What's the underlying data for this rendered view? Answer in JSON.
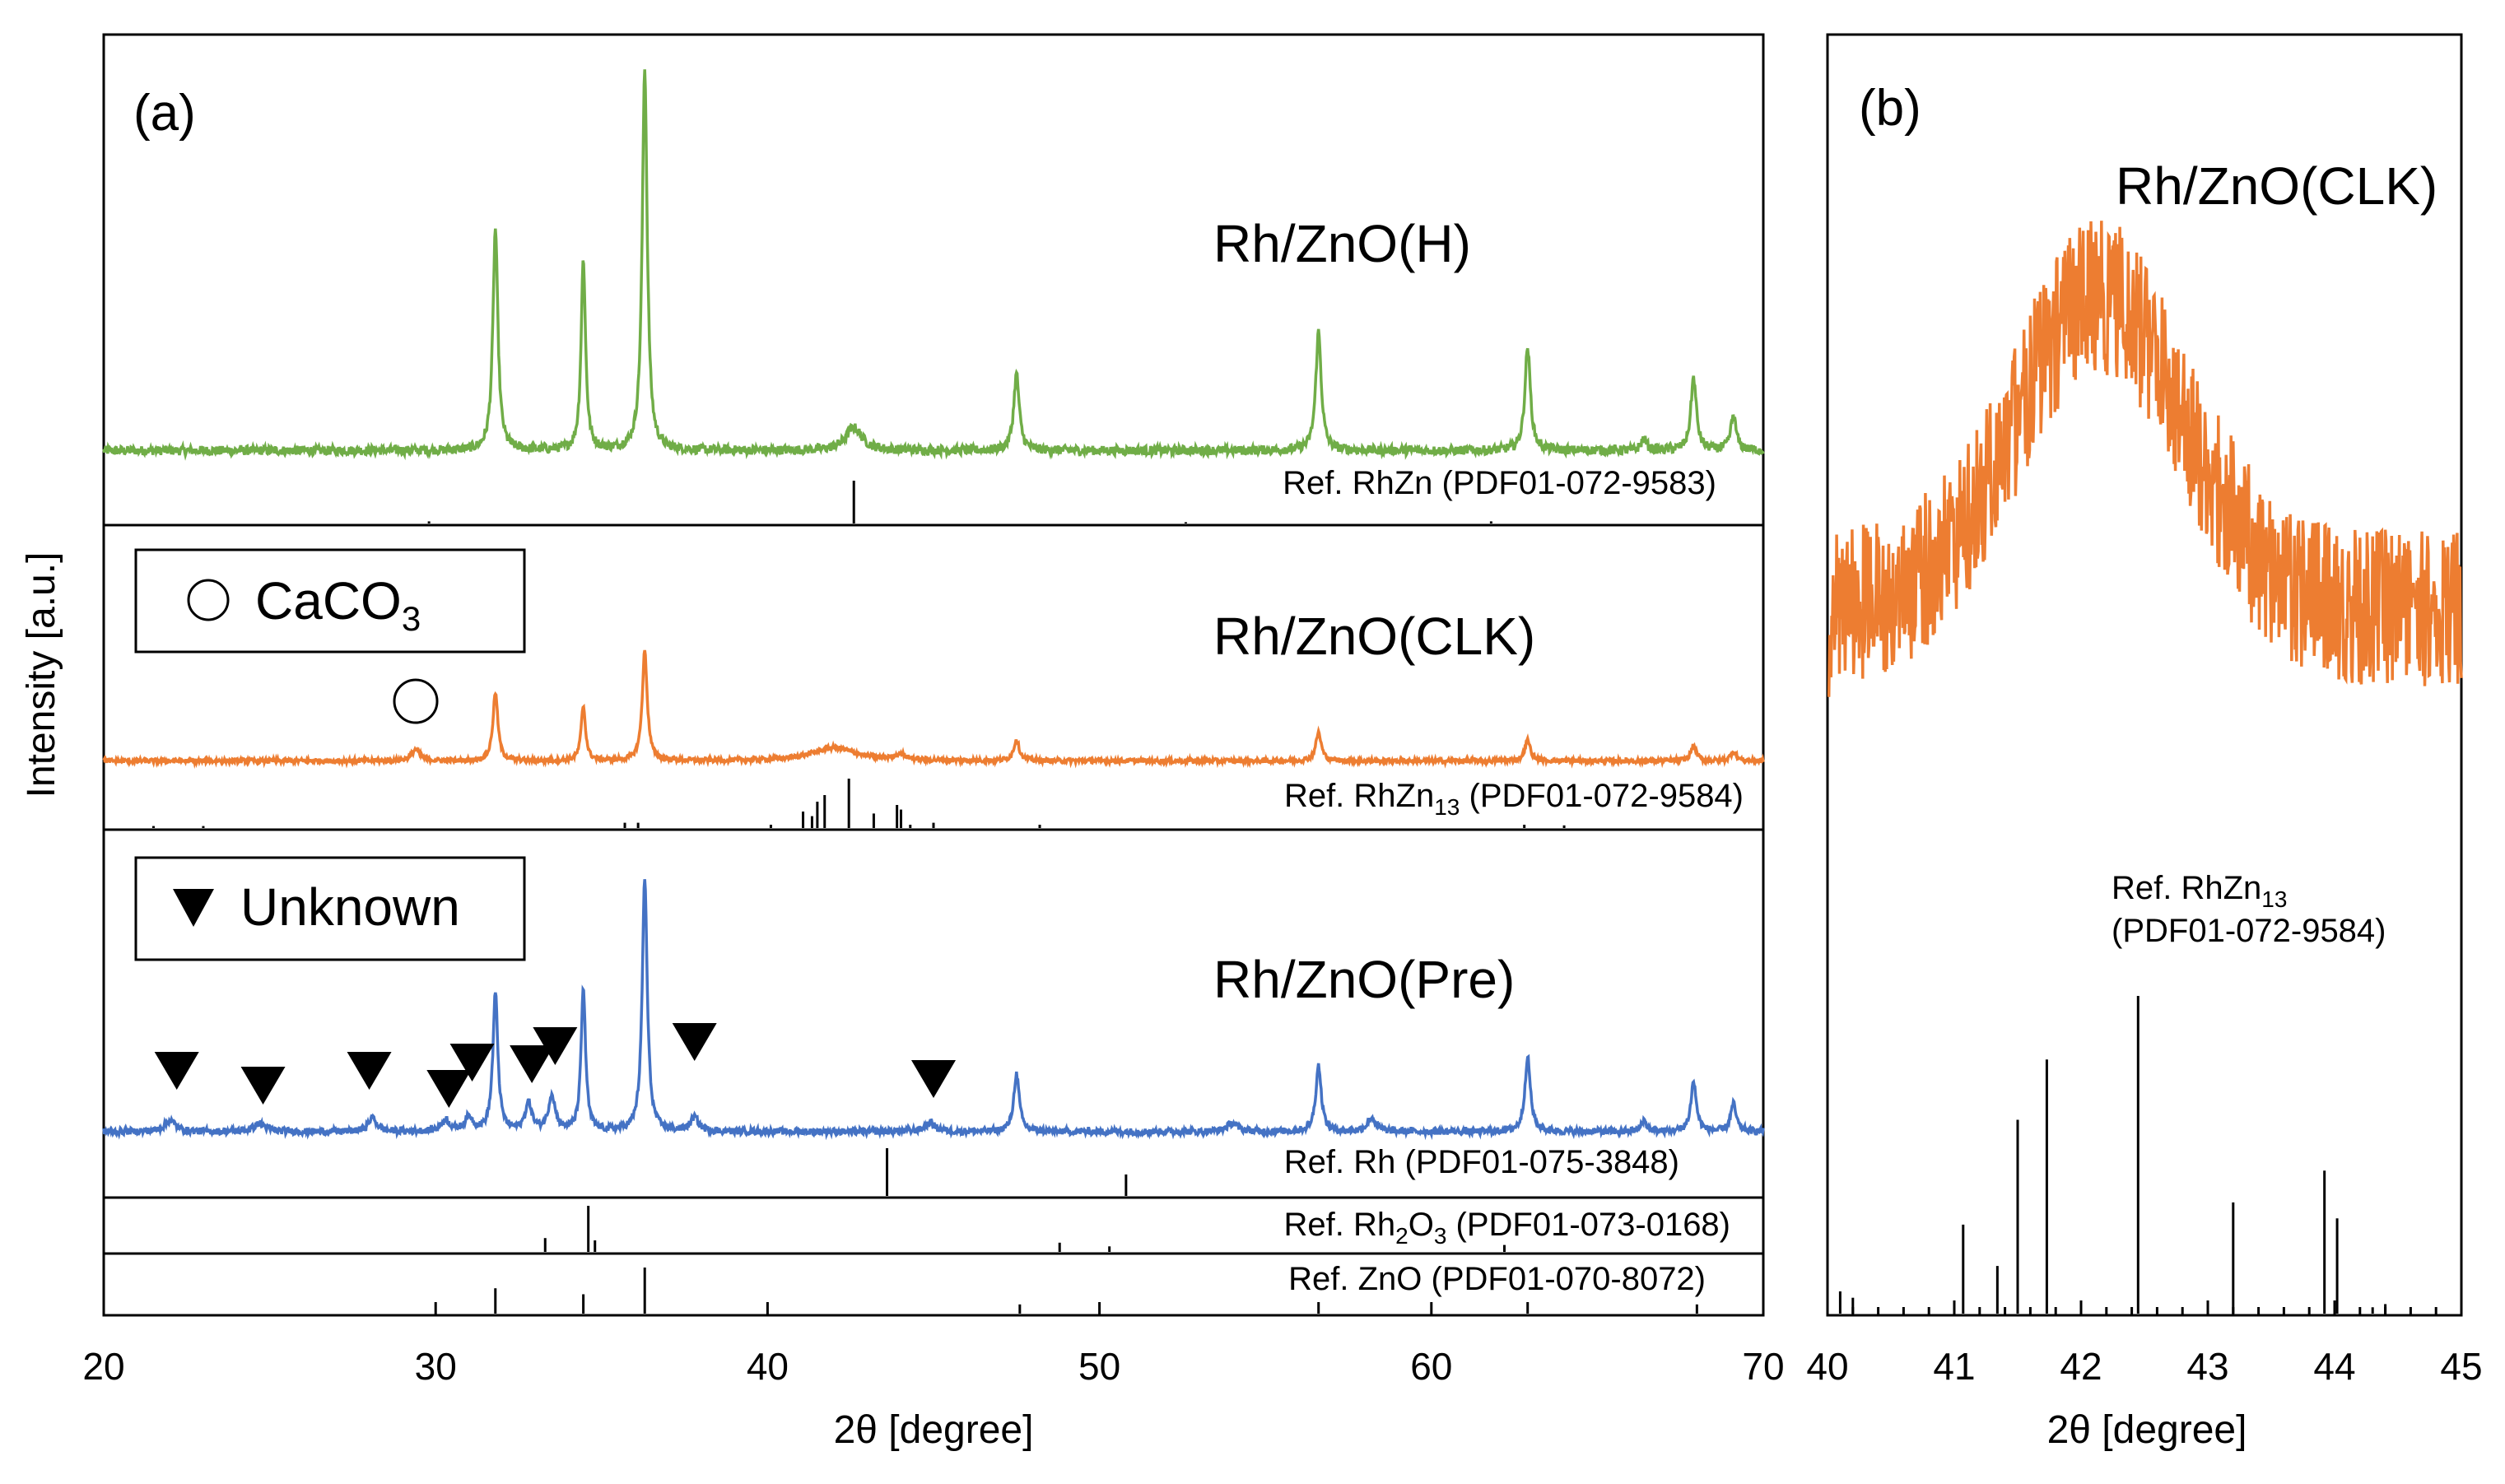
{
  "chart_data": [
    {
      "panel": "(a)",
      "type": "line",
      "xlabel": "2θ [degree]",
      "ylabel": "Intensity [a.u.]",
      "xlim": [
        20,
        70
      ],
      "xticks": [
        20,
        30,
        40,
        50,
        60,
        70
      ],
      "legend": [
        {
          "marker": "circle",
          "label": "CaCO",
          "subscript": "3"
        },
        {
          "marker": "down-triangle",
          "label": "Unknown"
        }
      ],
      "series": [
        {
          "name": "Rh/ZnO(H)",
          "color": "#70ad47",
          "noise": 0.012,
          "baseline": 0.09,
          "peaks": [
            [
              31.8,
              0.58,
              0.09
            ],
            [
              34.45,
              0.5,
              0.08
            ],
            [
              36.3,
              1.0,
              0.09
            ],
            [
              42.6,
              0.06,
              0.3
            ],
            [
              47.5,
              0.2,
              0.1
            ],
            [
              56.6,
              0.31,
              0.1
            ],
            [
              62.9,
              0.27,
              0.1
            ],
            [
              66.4,
              0.03,
              0.1
            ],
            [
              67.9,
              0.19,
              0.1
            ],
            [
              69.1,
              0.09,
              0.1
            ]
          ]
        },
        {
          "name": "Rh/ZnO(CLK)",
          "color": "#ed7d31",
          "noise": 0.012,
          "baseline": 0.08,
          "peaks": [
            [
              29.4,
              0.06,
              0.15
            ],
            [
              31.8,
              0.36,
              0.09
            ],
            [
              34.45,
              0.29,
              0.08
            ],
            [
              36.3,
              0.58,
              0.09
            ],
            [
              42.0,
              0.07,
              0.8
            ],
            [
              44.0,
              0.03,
              0.2
            ],
            [
              47.5,
              0.11,
              0.1
            ],
            [
              56.6,
              0.15,
              0.1
            ],
            [
              62.9,
              0.11,
              0.1
            ],
            [
              67.9,
              0.08,
              0.1
            ],
            [
              69.1,
              0.05,
              0.1
            ]
          ]
        },
        {
          "name": "Rh/ZnO(Pre)",
          "color": "#4472c4",
          "noise": 0.012,
          "baseline": 0.1,
          "peaks": [
            [
              22.0,
              0.04,
              0.2
            ],
            [
              24.7,
              0.03,
              0.2
            ],
            [
              28.1,
              0.05,
              0.15
            ],
            [
              30.3,
              0.04,
              0.15
            ],
            [
              31.0,
              0.05,
              0.15
            ],
            [
              31.8,
              0.5,
              0.09
            ],
            [
              32.8,
              0.1,
              0.12
            ],
            [
              33.5,
              0.13,
              0.12
            ],
            [
              34.45,
              0.52,
              0.08
            ],
            [
              36.3,
              0.92,
              0.09
            ],
            [
              37.8,
              0.05,
              0.15
            ],
            [
              44.9,
              0.03,
              0.2
            ],
            [
              47.5,
              0.21,
              0.1
            ],
            [
              54.0,
              0.03,
              0.2
            ],
            [
              56.6,
              0.24,
              0.1
            ],
            [
              58.2,
              0.05,
              0.15
            ],
            [
              62.9,
              0.27,
              0.1
            ],
            [
              66.4,
              0.04,
              0.1
            ],
            [
              67.9,
              0.18,
              0.1
            ],
            [
              69.1,
              0.1,
              0.1
            ]
          ]
        }
      ],
      "sample_labels": [
        "Rh/ZnO(H)",
        "Rh/ZnO(CLK)",
        "Rh/ZnO(Pre)"
      ],
      "references": [
        {
          "label": "Ref. RhZn (PDF01-072-9583)",
          "sticks": [
            [
              29.8,
              0.05
            ],
            [
              42.6,
              1.0
            ],
            [
              52.6,
              0.03
            ],
            [
              61.8,
              0.05
            ]
          ]
        },
        {
          "label_pre": "Ref. RhZn",
          "label_sub": "13",
          "label_post": " (PDF01-072-9584)",
          "sticks": [
            [
              21.5,
              0.03
            ],
            [
              23.0,
              0.03
            ],
            [
              35.7,
              0.08
            ],
            [
              36.1,
              0.08
            ],
            [
              40.1,
              0.05
            ],
            [
              41.07,
              0.25
            ],
            [
              41.34,
              0.18
            ],
            [
              41.5,
              0.4
            ],
            [
              41.72,
              0.5
            ],
            [
              42.45,
              0.75
            ],
            [
              43.2,
              0.22
            ],
            [
              43.9,
              0.35
            ],
            [
              44.02,
              0.28
            ],
            [
              44.3,
              0.05
            ],
            [
              45.0,
              0.08
            ],
            [
              48.2,
              0.05
            ],
            [
              62.8,
              0.05
            ],
            [
              64.0,
              0.04
            ]
          ]
        },
        {
          "label": "Ref. Rh (PDF01-075-3848)",
          "sticks": [
            [
              43.6,
              1.0
            ],
            [
              50.8,
              0.45
            ]
          ]
        },
        {
          "label_pre": "Ref. Rh",
          "label_sub": "2",
          "label_mid": "O",
          "label_sub2": "3",
          "label_post": " (PDF01-073-0168)",
          "sticks": [
            [
              33.3,
              0.3
            ],
            [
              34.6,
              1.0
            ],
            [
              34.8,
              0.25
            ],
            [
              48.8,
              0.2
            ],
            [
              50.3,
              0.12
            ],
            [
              62.2,
              0.15
            ]
          ]
        },
        {
          "label": "Ref. ZnO (PDF01-070-8072)",
          "sticks": [
            [
              31.8,
              0.55
            ],
            [
              34.45,
              0.42
            ],
            [
              36.3,
              1.0
            ],
            [
              47.6,
              0.2
            ],
            [
              56.6,
              0.25
            ],
            [
              62.9,
              0.25
            ],
            [
              68.0,
              0.2
            ]
          ]
        }
      ],
      "caco3_markers": [
        29.4
      ],
      "unknown_markers": [
        22.2,
        24.8,
        28.0,
        30.4,
        31.1,
        32.9,
        33.6,
        37.8,
        45.0
      ]
    },
    {
      "panel": "(b)",
      "type": "line",
      "xlabel": "2θ [degree]",
      "xlim": [
        40,
        45
      ],
      "xticks": [
        40,
        41,
        42,
        43,
        44,
        45
      ],
      "series": [
        {
          "name": "Rh/ZnO(CLK)",
          "color": "#ed7d31"
        }
      ],
      "reference": {
        "label_line1_pre": "Ref. RhZn",
        "label_line1_sub": "13",
        "label_line2": "(PDF01-072-9584)",
        "sticks": [
          [
            40.1,
            0.07
          ],
          [
            40.2,
            0.05
          ],
          [
            41.07,
            0.28
          ],
          [
            41.34,
            0.15
          ],
          [
            41.5,
            0.61
          ],
          [
            41.73,
            0.8
          ],
          [
            42.45,
            1.0
          ],
          [
            43.2,
            0.35
          ],
          [
            43.92,
            0.45
          ],
          [
            44.02,
            0.3
          ],
          [
            44.3,
            0.02
          ],
          [
            44.4,
            0.03
          ]
        ]
      }
    }
  ]
}
